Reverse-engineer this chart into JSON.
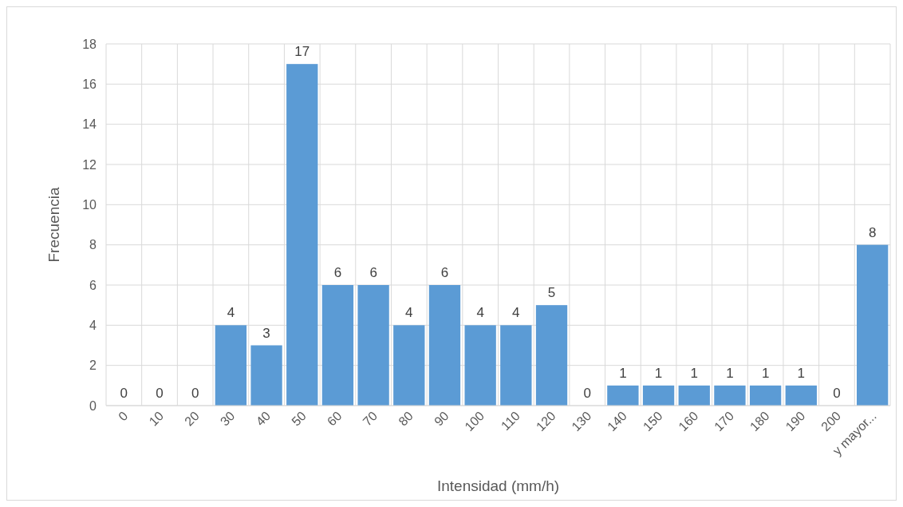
{
  "chart_data": {
    "type": "bar",
    "xlabel": "Intensidad (mm/h)",
    "ylabel": "Frecuencia",
    "categories": [
      "0",
      "10",
      "20",
      "30",
      "40",
      "50",
      "60",
      "70",
      "80",
      "90",
      "100",
      "110",
      "120",
      "130",
      "140",
      "150",
      "160",
      "170",
      "180",
      "190",
      "200",
      "y mayor..."
    ],
    "values": [
      0,
      0,
      0,
      4,
      3,
      17,
      6,
      6,
      4,
      6,
      4,
      4,
      5,
      0,
      1,
      1,
      1,
      1,
      1,
      1,
      0,
      8
    ],
    "color": "#5b9bd5",
    "ylim": [
      0,
      18
    ],
    "yticks": [
      0,
      2,
      4,
      6,
      8,
      10,
      12,
      14,
      16,
      18
    ],
    "grid": true,
    "data_labels": true
  }
}
